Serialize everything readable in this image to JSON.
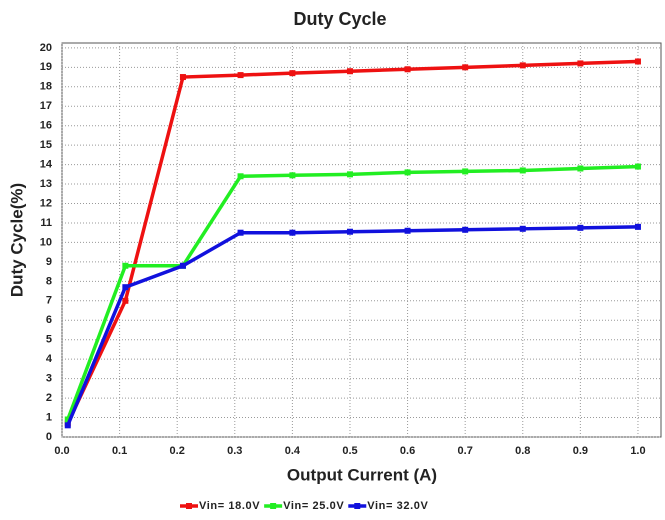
{
  "chart_data": {
    "type": "line",
    "title": "Duty Cycle",
    "xlabel": "Output Current (A)",
    "ylabel": "Duty Cycle(%)",
    "x": [
      0.01,
      0.11,
      0.21,
      0.31,
      0.4,
      0.5,
      0.6,
      0.7,
      0.8,
      0.9,
      1.0
    ],
    "series": [
      {
        "name": "Vin= 18.0V",
        "color": "#ee1111",
        "values": [
          0.7,
          7.0,
          18.5,
          18.6,
          18.7,
          18.8,
          18.9,
          19.0,
          19.1,
          19.2,
          19.3
        ]
      },
      {
        "name": "Vin= 25.0V",
        "color": "#22ee22",
        "values": [
          0.9,
          8.8,
          8.8,
          13.4,
          13.45,
          13.5,
          13.6,
          13.65,
          13.7,
          13.8,
          13.9
        ]
      },
      {
        "name": "Vin= 32.0V",
        "color": "#1111dd",
        "values": [
          0.6,
          7.7,
          8.8,
          10.5,
          10.5,
          10.55,
          10.6,
          10.65,
          10.7,
          10.75,
          10.8
        ]
      }
    ],
    "xlim": [
      0,
      1.04
    ],
    "xticks": [
      {
        "value": 0,
        "label": "0.0"
      },
      0.1,
      0.2,
      0.3,
      0.4,
      0.5,
      0.6,
      0.7,
      0.8,
      0.9,
      {
        "value": 1,
        "label": "1.0"
      }
    ],
    "ylim": [
      0,
      20.25
    ],
    "yticks": [
      0,
      1,
      2,
      3,
      4,
      5,
      6,
      7,
      8,
      9,
      10,
      11,
      12,
      13,
      14,
      15,
      16,
      17,
      18,
      19,
      20
    ],
    "grid": true,
    "legend": "bottom"
  }
}
